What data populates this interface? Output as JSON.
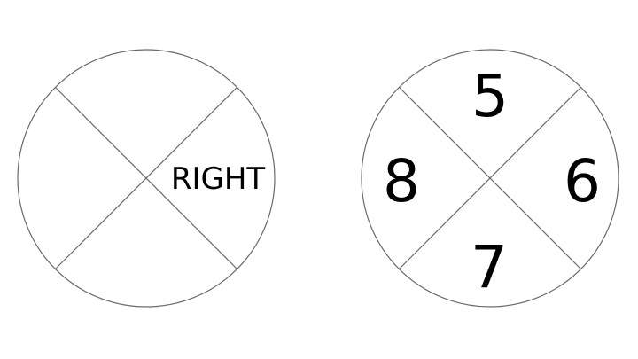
{
  "left_circle": {
    "label_right": "RIGHT"
  },
  "right_circle": {
    "top": "5",
    "right": "6",
    "bottom": "7",
    "left": "8"
  }
}
